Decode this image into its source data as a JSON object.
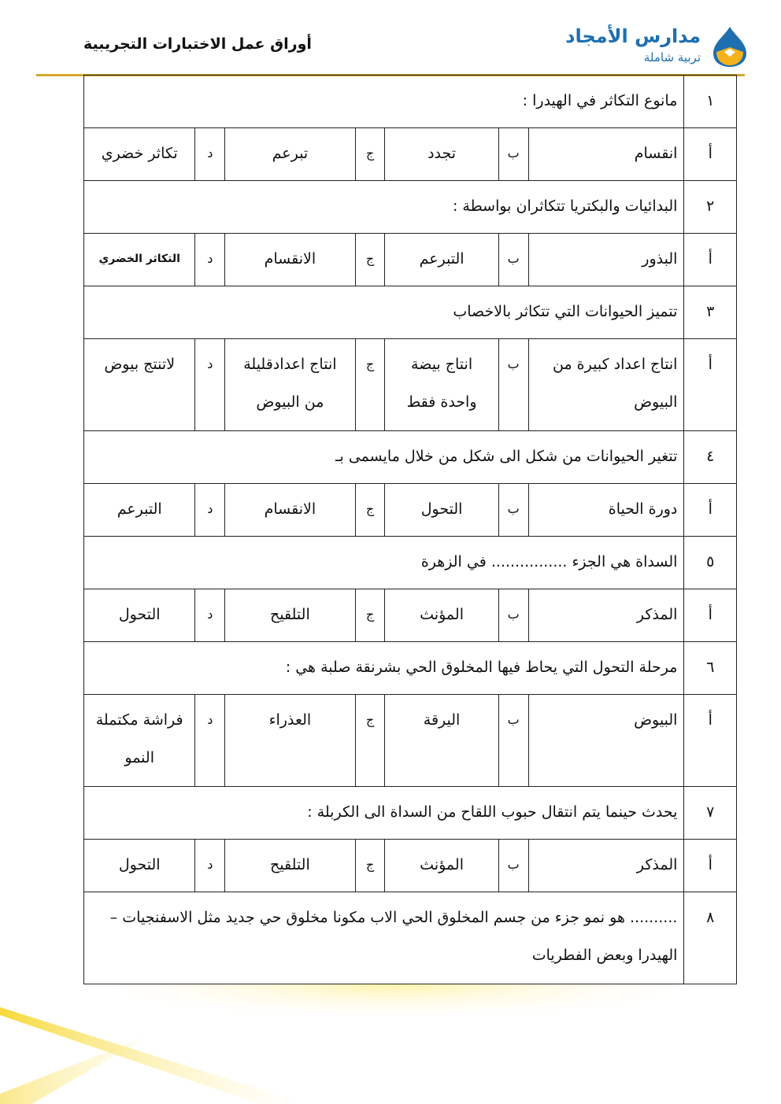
{
  "header": {
    "title": "أوراق عمل الاختبارات التجريبية",
    "logo_name": "مدارس الأمجاد",
    "logo_tagline": "تربية شاملة"
  },
  "colors": {
    "rule": "#d6a62c",
    "logo_blue": "#1d6fb0",
    "logo_yellow": "#f6b21b"
  },
  "labels": {
    "a": "أ",
    "b": "ب",
    "c": "ج",
    "d": "د"
  },
  "questions": [
    {
      "num": "١",
      "text": "مانوع التكاثر في الهيدرا :",
      "options": [
        "انقسام",
        "تجدد",
        "تبرعم",
        "تكاثر خضري"
      ]
    },
    {
      "num": "٢",
      "text": "البدائيات والبكتريا تتكاثران بواسطة :",
      "options": [
        "البذور",
        "التبرعم",
        "الانقسام",
        "التكاثر الخضري"
      ]
    },
    {
      "num": "٣",
      "text": "تتميز الحيوانات التي تتكاثر بالاخصاب",
      "options": [
        "انتاج اعداد كبيرة من البيوض",
        "انتاج بيضة واحدة فقط",
        "انتاج اعدادقليلة من البيوض",
        "لاتنتج بيوض"
      ]
    },
    {
      "num": "٤",
      "text": "تتغير الحيوانات من شكل الى شكل من خلال مايسمى بـ",
      "options": [
        "دورة الحياة",
        "التحول",
        "الانقسام",
        "التبرعم"
      ]
    },
    {
      "num": "٥",
      "text": "السداة هي الجزء ................ في الزهرة",
      "options": [
        "المذكر",
        "المؤنث",
        "التلقيح",
        "التحول"
      ]
    },
    {
      "num": "٦",
      "text": "مرحلة التحول التي يحاط فيها المخلوق الحي بشرنقة صلبة هي :",
      "options": [
        "البيوض",
        "اليرقة",
        "العذراء",
        "فراشة مكتملة النمو"
      ]
    },
    {
      "num": "٧",
      "text": "يحدث حينما يتم انتقال حبوب اللقاح من السداة الى الكربلة :",
      "options": [
        "المذكر",
        "المؤنث",
        "التلقيح",
        "التحول"
      ]
    },
    {
      "num": "٨",
      "text": ".......... هو نمو جزء من جسم المخلوق الحي الاب مكونا مخلوق حي جديد مثل الاسفنجيات – الهيدرا وبعض الفطريات"
    }
  ]
}
